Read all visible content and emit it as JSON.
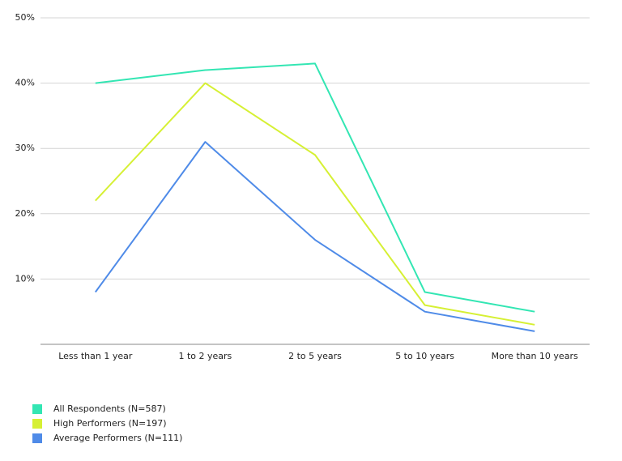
{
  "chart_data": {
    "type": "line",
    "categories": [
      "Less than 1 year",
      "1 to 2 years",
      "2 to 5 years",
      "5 to 10 years",
      "More than 10 years"
    ],
    "series": [
      {
        "name": "All Respondents (N=587)",
        "color": "#33e6b3",
        "values": [
          40,
          42,
          43,
          8,
          5
        ]
      },
      {
        "name": "High Performers (N=197)",
        "color": "#d6f034",
        "values": [
          22,
          40,
          29,
          6,
          3
        ]
      },
      {
        "name": "Average Performers (N=111)",
        "color": "#4f8be8",
        "values": [
          8,
          31,
          16,
          5,
          2
        ]
      }
    ],
    "ylim": [
      0,
      50
    ],
    "yticks": [
      {
        "value": 10,
        "label": "10%"
      },
      {
        "value": 20,
        "label": "20%"
      },
      {
        "value": 30,
        "label": "30%"
      },
      {
        "value": 40,
        "label": "40%"
      },
      {
        "value": 50,
        "label": "50%"
      }
    ],
    "grid": true,
    "legend": "bottom-left"
  }
}
